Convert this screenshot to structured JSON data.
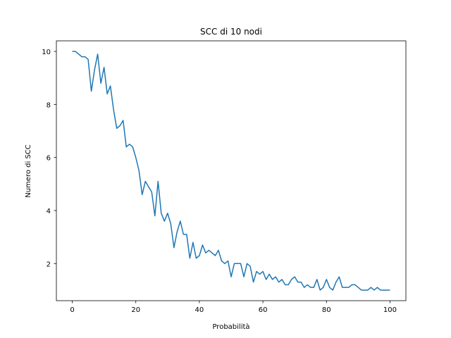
{
  "chart_data": {
    "type": "line",
    "title": "SCC di 10 nodi",
    "xlabel": "Probabilità",
    "ylabel": "Numero di SCC",
    "xlim": [
      -5,
      105
    ],
    "ylim": [
      0.6,
      10.4
    ],
    "xticks": [
      0,
      20,
      40,
      60,
      80,
      100
    ],
    "yticks": [
      2,
      4,
      6,
      8,
      10
    ],
    "grid": false,
    "line_color": "#1f77b4",
    "series": [
      {
        "x": [
          0,
          1,
          2,
          3,
          4,
          5,
          6,
          7,
          8,
          9,
          10,
          11,
          12,
          13,
          14,
          15,
          16,
          17,
          18,
          19,
          20,
          21,
          22,
          23,
          24,
          25,
          26,
          27,
          28,
          29,
          30,
          31,
          32,
          33,
          34,
          35,
          36,
          37,
          38,
          39,
          40,
          41,
          42,
          43,
          44,
          45,
          46,
          47,
          48,
          49,
          50,
          51,
          52,
          53,
          54,
          55,
          56,
          57,
          58,
          59,
          60,
          61,
          62,
          63,
          64,
          65,
          66,
          67,
          68,
          69,
          70,
          71,
          72,
          73,
          74,
          75,
          76,
          77,
          78,
          79,
          80,
          81,
          82,
          83,
          84,
          85,
          86,
          87,
          88,
          89,
          90,
          91,
          92,
          93,
          94,
          95,
          96,
          97,
          98,
          99,
          100
        ],
        "values": [
          10,
          10,
          9.9,
          9.8,
          9.8,
          9.7,
          8.5,
          9.3,
          9.9,
          8.8,
          9.4,
          8.4,
          8.7,
          7.8,
          7.1,
          7.2,
          7.4,
          6.4,
          6.5,
          6.4,
          6.0,
          5.5,
          4.6,
          5.1,
          4.9,
          4.7,
          3.8,
          5.1,
          3.9,
          3.6,
          3.9,
          3.5,
          2.6,
          3.2,
          3.6,
          3.1,
          3.1,
          2.2,
          2.8,
          2.2,
          2.3,
          2.7,
          2.4,
          2.5,
          2.4,
          2.3,
          2.5,
          2.1,
          2.0,
          2.1,
          1.5,
          2.0,
          2.0,
          2.0,
          1.5,
          2.0,
          1.9,
          1.3,
          1.7,
          1.6,
          1.7,
          1.4,
          1.6,
          1.4,
          1.5,
          1.3,
          1.4,
          1.2,
          1.2,
          1.4,
          1.5,
          1.3,
          1.3,
          1.1,
          1.2,
          1.1,
          1.1,
          1.4,
          1.0,
          1.1,
          1.4,
          1.1,
          1.0,
          1.3,
          1.5,
          1.1,
          1.1,
          1.1,
          1.2,
          1.2,
          1.1,
          1.0,
          1.0,
          1.0,
          1.1,
          1.0,
          1.1,
          1.0,
          1.0,
          1.0,
          1.0
        ]
      }
    ]
  }
}
